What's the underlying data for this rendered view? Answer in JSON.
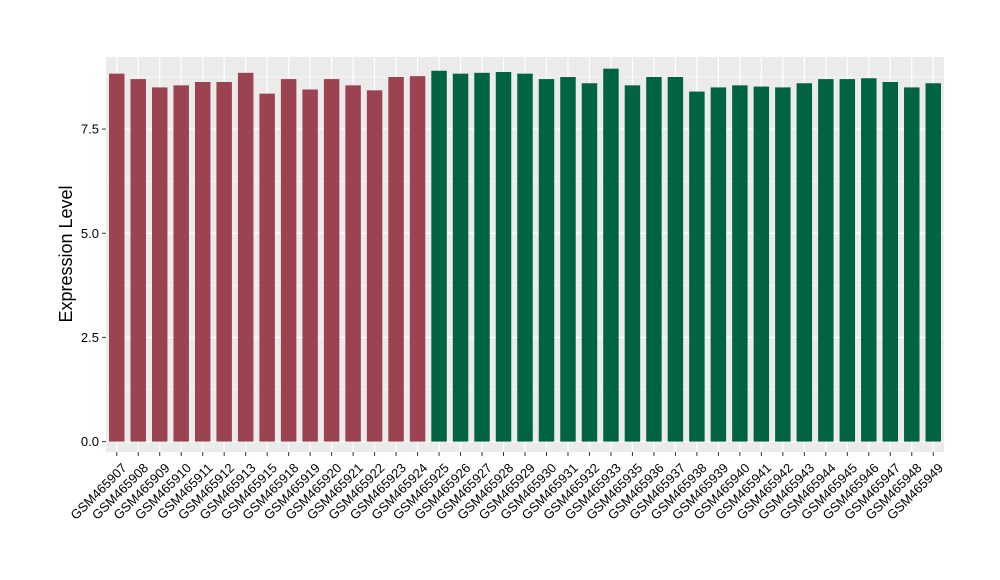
{
  "chart_data": {
    "type": "bar",
    "title": "",
    "xlabel": "",
    "ylabel": "Expression Level",
    "ylim": [
      -0.25,
      9.23
    ],
    "yticks": [
      0.0,
      2.5,
      5.0,
      7.5
    ],
    "ytick_labels": [
      "0.0",
      "2.5",
      "5.0",
      "7.5"
    ],
    "grid": true,
    "legend": "none",
    "colors": {
      "group_a": "#9b4350",
      "group_b": "#006442",
      "panel_bg": "#ebebeb",
      "grid": "#ffffff"
    },
    "categories": [
      "GSM465907",
      "GSM465908",
      "GSM465909",
      "GSM465910",
      "GSM465911",
      "GSM465912",
      "GSM465913",
      "GSM465915",
      "GSM465918",
      "GSM465919",
      "GSM465920",
      "GSM465921",
      "GSM465922",
      "GSM465923",
      "GSM465924",
      "GSM465925",
      "GSM465926",
      "GSM465927",
      "GSM465928",
      "GSM465929",
      "GSM465930",
      "GSM465931",
      "GSM465932",
      "GSM465933",
      "GSM465935",
      "GSM465936",
      "GSM465937",
      "GSM465938",
      "GSM465939",
      "GSM465940",
      "GSM465941",
      "GSM465942",
      "GSM465943",
      "GSM465944",
      "GSM465945",
      "GSM465946",
      "GSM465947",
      "GSM465948",
      "GSM465949"
    ],
    "values": [
      8.83,
      8.7,
      8.5,
      8.55,
      8.63,
      8.63,
      8.85,
      8.35,
      8.7,
      8.45,
      8.7,
      8.55,
      8.43,
      8.75,
      8.77,
      8.9,
      8.83,
      8.85,
      8.87,
      8.83,
      8.7,
      8.75,
      8.6,
      8.95,
      8.55,
      8.75,
      8.75,
      8.4,
      8.5,
      8.55,
      8.52,
      8.5,
      8.6,
      8.7,
      8.7,
      8.72,
      8.63,
      8.5,
      8.6
    ],
    "groups": [
      "a",
      "a",
      "a",
      "a",
      "a",
      "a",
      "a",
      "a",
      "a",
      "a",
      "a",
      "a",
      "a",
      "a",
      "a",
      "b",
      "b",
      "b",
      "b",
      "b",
      "b",
      "b",
      "b",
      "b",
      "b",
      "b",
      "b",
      "b",
      "b",
      "b",
      "b",
      "b",
      "b",
      "b",
      "b",
      "b",
      "b",
      "b",
      "b"
    ]
  }
}
